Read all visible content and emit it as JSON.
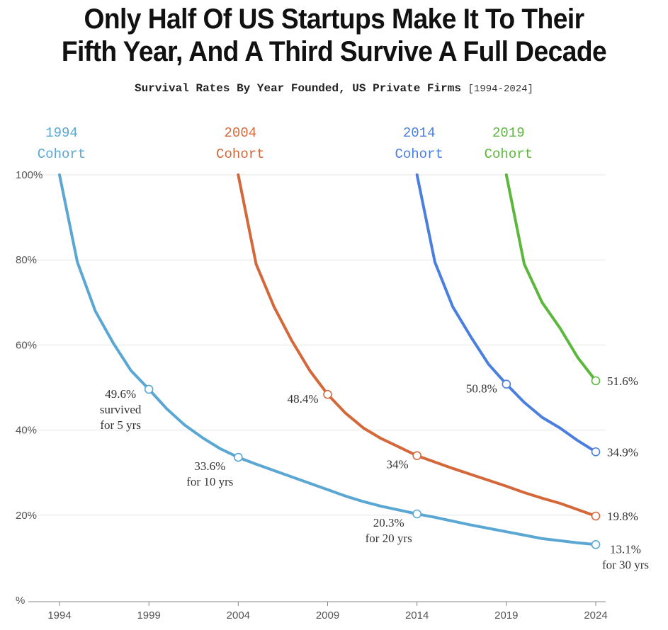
{
  "title": {
    "line1": "Only Half Of US Startups Make It To Their",
    "line2": "Fifth Year, And A Third Survive A Full Decade"
  },
  "subtitle": {
    "text": "Survival Rates By Year Founded, US Private Firms",
    "range": "[1994-2024]"
  },
  "chart_data": {
    "type": "line",
    "title": "Only Half Of US Startups Make It To Their Fifth Year, And A Third Survive A Full Decade",
    "subtitle": "Survival Rates By Year Founded, US Private Firms [1994-2024]",
    "xlabel": "",
    "ylabel": "%",
    "xlim": [
      1994,
      2024
    ],
    "ylim": [
      0,
      100
    ],
    "x_ticks": [
      "1994",
      "1999",
      "2004",
      "2009",
      "2014",
      "2019",
      "2024"
    ],
    "y_ticks": [
      "%",
      "20%",
      "40%",
      "60%",
      "80%",
      "100%"
    ],
    "grid": true,
    "series": [
      {
        "name": "1994 Cohort",
        "label_line1": "1994",
        "label_line2": "Cohort",
        "color": "#5aa7d4",
        "x": [
          1994,
          1995,
          1996,
          1997,
          1998,
          1999,
          2000,
          2001,
          2002,
          2003,
          2004,
          2005,
          2006,
          2007,
          2008,
          2009,
          2010,
          2011,
          2012,
          2013,
          2014,
          2015,
          2016,
          2017,
          2018,
          2019,
          2020,
          2021,
          2022,
          2023,
          2024
        ],
        "y": [
          100,
          79.5,
          68,
          60.5,
          54,
          49.6,
          45,
          41.2,
          38.2,
          35.6,
          33.6,
          32,
          30.5,
          29,
          27.5,
          26,
          24.5,
          23.2,
          22.1,
          21.2,
          20.3,
          19.5,
          18.6,
          17.7,
          16.9,
          16.1,
          15.3,
          14.5,
          14,
          13.5,
          13.1
        ]
      },
      {
        "name": "2004 Cohort",
        "label_line1": "2004",
        "label_line2": "Cohort",
        "color": "#d4683a",
        "x": [
          2004,
          2005,
          2006,
          2007,
          2008,
          2009,
          2010,
          2011,
          2012,
          2013,
          2014,
          2015,
          2016,
          2017,
          2018,
          2019,
          2020,
          2021,
          2022,
          2023,
          2024
        ],
        "y": [
          100,
          79,
          69,
          61,
          54,
          48.4,
          44,
          40.5,
          38,
          36,
          34,
          32.5,
          31,
          29.6,
          28.2,
          26.8,
          25.3,
          24,
          22.8,
          21.3,
          19.8
        ]
      },
      {
        "name": "2014 Cohort",
        "label_line1": "2014",
        "label_line2": "Cohort",
        "color": "#4a7fe0",
        "x": [
          2014,
          2015,
          2016,
          2017,
          2018,
          2019,
          2020,
          2021,
          2022,
          2023,
          2024
        ],
        "y": [
          100,
          79.5,
          69,
          62,
          55.5,
          50.8,
          46.5,
          43,
          40.5,
          37.5,
          34.9
        ]
      },
      {
        "name": "2019 Cohort",
        "label_line1": "2019",
        "label_line2": "Cohort",
        "color": "#5cb83c",
        "x": [
          2019,
          2020,
          2021,
          2022,
          2023,
          2024
        ],
        "y": [
          100,
          79,
          70,
          64,
          57,
          51.6
        ]
      }
    ],
    "markers": [
      {
        "series": 0,
        "x": 1999,
        "y": 49.6
      },
      {
        "series": 0,
        "x": 2004,
        "y": 33.6
      },
      {
        "series": 0,
        "x": 2014,
        "y": 20.3
      },
      {
        "series": 0,
        "x": 2024,
        "y": 13.1
      },
      {
        "series": 1,
        "x": 2009,
        "y": 48.4
      },
      {
        "series": 1,
        "x": 2014,
        "y": 34
      },
      {
        "series": 1,
        "x": 2024,
        "y": 19.8
      },
      {
        "series": 2,
        "x": 2019,
        "y": 50.8
      },
      {
        "series": 2,
        "x": 2024,
        "y": 34.9
      },
      {
        "series": 3,
        "x": 2024,
        "y": 51.6
      }
    ],
    "annotations": [
      {
        "lines": [
          "49.6%",
          "survived",
          "for 5 yrs"
        ],
        "x": 1999,
        "y": 49.6,
        "pos": "left"
      },
      {
        "lines": [
          "33.6%",
          "for 10 yrs"
        ],
        "x": 2004,
        "y": 33.6,
        "pos": "below-left"
      },
      {
        "lines": [
          "20.3%",
          "for 20 yrs"
        ],
        "x": 2014,
        "y": 20.3,
        "pos": "below-left"
      },
      {
        "lines": [
          "13.1%",
          "for 30 yrs"
        ],
        "x": 2024,
        "y": 13.1,
        "pos": "right-below"
      },
      {
        "lines": [
          "48.4%"
        ],
        "x": 2009,
        "y": 48.4,
        "pos": "left"
      },
      {
        "lines": [
          "34%"
        ],
        "x": 2014,
        "y": 34,
        "pos": "below-left"
      },
      {
        "lines": [
          "19.8%"
        ],
        "x": 2024,
        "y": 19.8,
        "pos": "right"
      },
      {
        "lines": [
          "50.8%"
        ],
        "x": 2019,
        "y": 50.8,
        "pos": "left"
      },
      {
        "lines": [
          "34.9%"
        ],
        "x": 2024,
        "y": 34.9,
        "pos": "right"
      },
      {
        "lines": [
          "51.6%"
        ],
        "x": 2024,
        "y": 51.6,
        "pos": "right"
      }
    ]
  }
}
